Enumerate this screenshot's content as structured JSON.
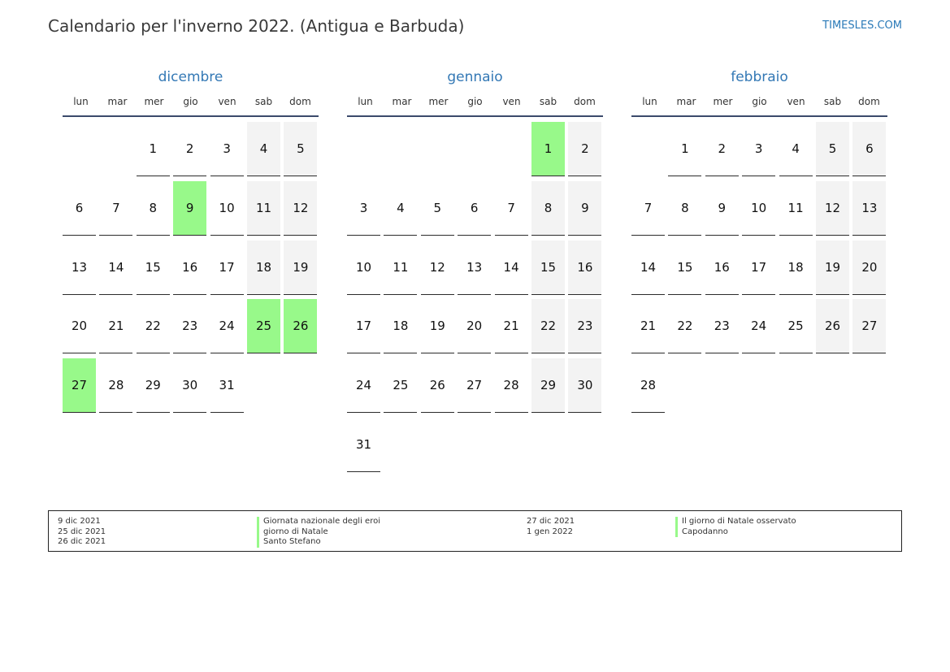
{
  "header": {
    "title": "Calendario per l'inverno 2022. (Antigua e Barbuda)",
    "site": "TIMESLES.COM"
  },
  "weekdays": [
    "lun",
    "mar",
    "mer",
    "gio",
    "ven",
    "sab",
    "dom"
  ],
  "months": [
    {
      "name": "dicembre",
      "first_weekday": 3,
      "days": 31,
      "holidays": [
        9,
        25,
        26,
        27
      ]
    },
    {
      "name": "gennaio",
      "first_weekday": 6,
      "days": 31,
      "holidays": [
        1
      ]
    },
    {
      "name": "febbraio",
      "first_weekday": 2,
      "days": 28,
      "holidays": []
    }
  ],
  "legend": [
    {
      "date": "9 dic 2021",
      "name": "Giornata nazionale degli eroi"
    },
    {
      "date": "25 dic 2021",
      "name": "giorno di Natale"
    },
    {
      "date": "26 dic 2021",
      "name": "Santo Stefano"
    },
    {
      "date": "27 dic 2021",
      "name": "Il giorno di Natale osservato"
    },
    {
      "date": "1 gen 2022",
      "name": "Capodanno"
    }
  ],
  "colors": {
    "holiday": "#98f98a",
    "weekend": "#f3f3f3",
    "accent": "#3378b5"
  }
}
